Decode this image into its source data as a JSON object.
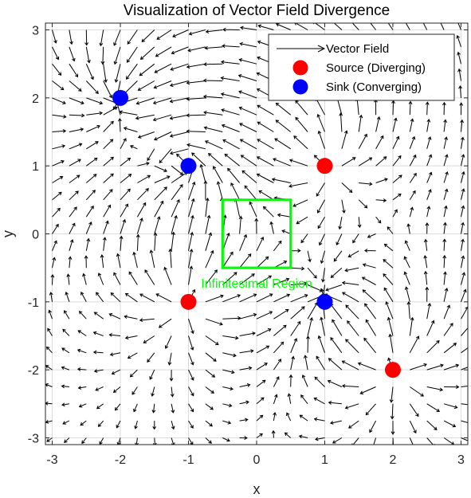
{
  "chart_data": {
    "type": "quiver",
    "title": "Visualization of Vector Field Divergence",
    "xlabel": "x",
    "ylabel": "y",
    "xlim": [
      -3.1,
      3.1
    ],
    "ylim": [
      -3.1,
      3.1
    ],
    "xticks": [
      -3,
      -2,
      -1,
      0,
      1,
      2,
      3
    ],
    "yticks": [
      -3,
      -2,
      -1,
      0,
      1,
      2,
      3
    ],
    "grid": true,
    "legend_position": "top-right",
    "legend": [
      {
        "label": "Vector Field",
        "marker": "arrow",
        "color": "#000000"
      },
      {
        "label": "Source (Diverging)",
        "marker": "circle",
        "color": "#ff0000"
      },
      {
        "label": "Sink (Converging)",
        "marker": "circle",
        "color": "#0000ff"
      }
    ],
    "sources": [
      {
        "x": 1,
        "y": 1
      },
      {
        "x": -1,
        "y": -1
      },
      {
        "x": 2,
        "y": -2
      }
    ],
    "sinks": [
      {
        "x": -2,
        "y": 2
      },
      {
        "x": -1,
        "y": 1
      },
      {
        "x": 1,
        "y": -1
      }
    ],
    "vortex": {
      "x": -1,
      "y": 1,
      "strength": 1
    },
    "quiver_grid": {
      "start": -3,
      "end": 3,
      "step": 0.25
    },
    "region": {
      "x0": -0.5,
      "x1": 0.5,
      "y0": -0.5,
      "y1": 0.5,
      "color": "#00ff00",
      "label": "Infinitesimal Region"
    }
  }
}
